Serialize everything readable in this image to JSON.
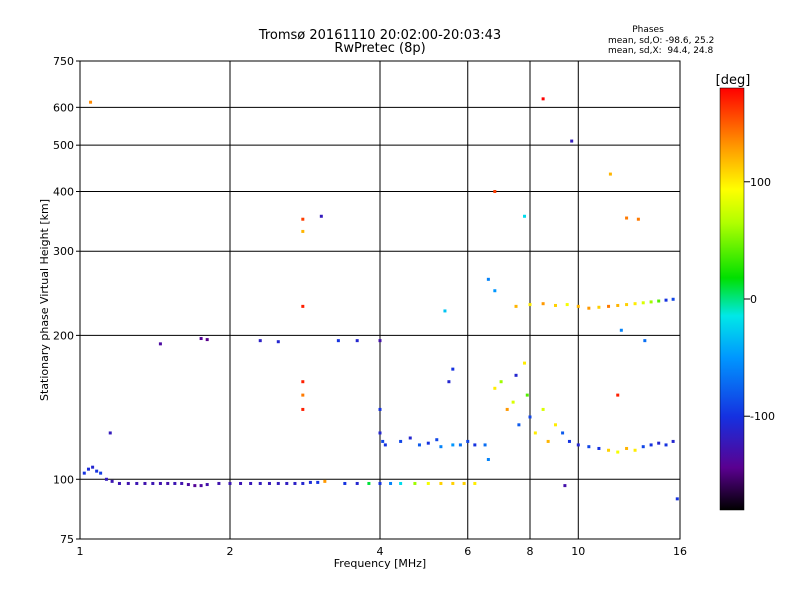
{
  "chart_data": {
    "type": "scatter",
    "title": "Tromsø 20161110 20:02:00-20:03:43",
    "subtitle": "RwPretec (8p)",
    "xlabel": "Frequency [MHz]",
    "ylabel": "Stationary phase Virtual Height [km]",
    "x_scale": "log",
    "y_scale": "log",
    "xlim": [
      1,
      16
    ],
    "ylim": [
      75,
      750
    ],
    "xticks": [
      1,
      2,
      4,
      6,
      8,
      10,
      16
    ],
    "yticks": [
      75,
      100,
      200,
      300,
      400,
      500,
      600,
      750
    ],
    "grid": true,
    "stats": {
      "heading": "Phases",
      "line_o": "mean, sd,O: -98.6, 25.2",
      "line_x": "mean, sd,X:  94.4, 24.8"
    },
    "colorbar": {
      "label": "[deg]",
      "range": [
        -180,
        180
      ],
      "ticks": [
        100,
        0,
        -100
      ]
    },
    "series": [
      {
        "points": [
          [
            1.02,
            103,
            -100
          ],
          [
            1.04,
            105,
            -105
          ],
          [
            1.06,
            106,
            -110
          ],
          [
            1.08,
            104,
            -100
          ],
          [
            1.1,
            103,
            -95
          ],
          [
            1.13,
            100,
            -120
          ],
          [
            1.16,
            99,
            -125
          ],
          [
            1.2,
            98,
            -125
          ],
          [
            1.25,
            98,
            -128
          ],
          [
            1.3,
            98,
            -125
          ],
          [
            1.35,
            98,
            -128
          ],
          [
            1.4,
            98,
            -125
          ],
          [
            1.45,
            98,
            -128
          ],
          [
            1.5,
            98,
            -130
          ],
          [
            1.55,
            98,
            -125
          ],
          [
            1.6,
            98,
            -128
          ],
          [
            1.65,
            97.5,
            -135
          ],
          [
            1.7,
            97,
            -140
          ],
          [
            1.75,
            97,
            -135
          ],
          [
            1.8,
            97.5,
            -130
          ],
          [
            1.9,
            98,
            -128
          ],
          [
            2.0,
            98,
            -125
          ],
          [
            2.1,
            98,
            -125
          ],
          [
            2.2,
            98,
            -123
          ],
          [
            2.3,
            98,
            -120
          ],
          [
            2.4,
            98,
            -122
          ],
          [
            2.5,
            98,
            -120
          ],
          [
            2.6,
            98,
            -118
          ],
          [
            2.7,
            98,
            -115
          ],
          [
            2.8,
            98,
            -110
          ],
          [
            2.9,
            98.5,
            -105
          ],
          [
            3.0,
            98.5,
            -100
          ],
          [
            3.1,
            99,
            130
          ],
          [
            3.4,
            98,
            -100
          ],
          [
            3.6,
            98,
            -110
          ],
          [
            3.8,
            98,
            10
          ],
          [
            4.0,
            98,
            -100
          ],
          [
            4.2,
            98,
            -60
          ],
          [
            4.4,
            98,
            -20
          ],
          [
            4.7,
            98,
            60
          ],
          [
            5.0,
            98,
            90
          ],
          [
            5.3,
            98,
            110
          ],
          [
            5.6,
            98,
            110
          ],
          [
            5.9,
            98,
            110
          ],
          [
            6.2,
            98,
            100
          ],
          [
            1.05,
            615,
            135
          ],
          [
            1.15,
            125,
            -120
          ],
          [
            1.45,
            192,
            -135
          ],
          [
            1.75,
            197,
            -140
          ],
          [
            1.8,
            196,
            -145
          ],
          [
            2.3,
            195,
            -115
          ],
          [
            2.5,
            194,
            -110
          ],
          [
            2.8,
            350,
            160
          ],
          [
            2.8,
            330,
            120
          ],
          [
            2.8,
            230,
            170
          ],
          [
            2.8,
            160,
            170
          ],
          [
            2.8,
            150,
            140
          ],
          [
            2.8,
            140,
            170
          ],
          [
            3.05,
            355,
            -120
          ],
          [
            3.3,
            195,
            -100
          ],
          [
            3.6,
            195,
            -110
          ],
          [
            4.0,
            195,
            -130
          ],
          [
            4.0,
            140,
            -100
          ],
          [
            4.0,
            125,
            -110
          ],
          [
            4.05,
            120,
            -90
          ],
          [
            4.1,
            118,
            -100
          ],
          [
            4.4,
            120,
            -90
          ],
          [
            4.6,
            122,
            -110
          ],
          [
            4.8,
            118,
            -80
          ],
          [
            5.0,
            119,
            -100
          ],
          [
            5.2,
            121,
            -90
          ],
          [
            5.3,
            117,
            -60
          ],
          [
            5.5,
            160,
            -110
          ],
          [
            5.6,
            170,
            -100
          ],
          [
            5.4,
            225,
            -30
          ],
          [
            5.6,
            118,
            -50
          ],
          [
            5.8,
            118,
            -70
          ],
          [
            6.0,
            120,
            -90
          ],
          [
            6.2,
            118,
            -100
          ],
          [
            6.5,
            118,
            -70
          ],
          [
            6.6,
            110,
            -60
          ],
          [
            6.8,
            155,
            100
          ],
          [
            7.0,
            160,
            60
          ],
          [
            7.2,
            140,
            130
          ],
          [
            7.4,
            145,
            80
          ],
          [
            7.5,
            165,
            -110
          ],
          [
            7.6,
            130,
            -80
          ],
          [
            7.8,
            175,
            100
          ],
          [
            7.9,
            150,
            40
          ],
          [
            8.0,
            135,
            -90
          ],
          [
            8.2,
            125,
            100
          ],
          [
            8.5,
            140,
            80
          ],
          [
            8.7,
            120,
            120
          ],
          [
            9.0,
            130,
            100
          ],
          [
            9.3,
            125,
            -80
          ],
          [
            9.6,
            120,
            -100
          ],
          [
            10.0,
            118,
            -110
          ],
          [
            10.5,
            117,
            -90
          ],
          [
            11.0,
            116,
            -100
          ],
          [
            11.5,
            115,
            110
          ],
          [
            12.0,
            114,
            90
          ],
          [
            12.5,
            116,
            120
          ],
          [
            13.0,
            115,
            100
          ],
          [
            13.5,
            117,
            -90
          ],
          [
            14.0,
            118,
            -100
          ],
          [
            14.5,
            119,
            -110
          ],
          [
            15.0,
            118,
            -100
          ],
          [
            15.5,
            120,
            -110
          ],
          [
            7.5,
            230,
            120
          ],
          [
            8.0,
            232,
            100
          ],
          [
            8.5,
            233,
            130
          ],
          [
            9.0,
            231,
            110
          ],
          [
            9.5,
            232,
            90
          ],
          [
            10.0,
            230,
            120
          ],
          [
            10.5,
            228,
            130
          ],
          [
            11.0,
            229,
            110
          ],
          [
            11.5,
            230,
            140
          ],
          [
            12.0,
            231,
            120
          ],
          [
            12.5,
            232,
            110
          ],
          [
            13.0,
            233,
            100
          ],
          [
            13.5,
            234,
            80
          ],
          [
            14.0,
            235,
            60
          ],
          [
            14.5,
            236,
            40
          ],
          [
            15.0,
            237,
            -100
          ],
          [
            15.5,
            238,
            -90
          ],
          [
            6.6,
            262,
            -60
          ],
          [
            6.8,
            248,
            -50
          ],
          [
            7.8,
            355,
            -20
          ],
          [
            8.5,
            625,
            180
          ],
          [
            9.7,
            510,
            -120
          ],
          [
            11.6,
            435,
            120
          ],
          [
            12.5,
            352,
            140
          ],
          [
            13.2,
            350,
            140
          ],
          [
            13.6,
            195,
            -70
          ],
          [
            12.2,
            205,
            -60
          ],
          [
            12.0,
            150,
            170
          ],
          [
            9.4,
            97,
            -130
          ],
          [
            15.8,
            91,
            -100
          ],
          [
            6.8,
            400,
            160
          ]
        ]
      }
    ]
  }
}
